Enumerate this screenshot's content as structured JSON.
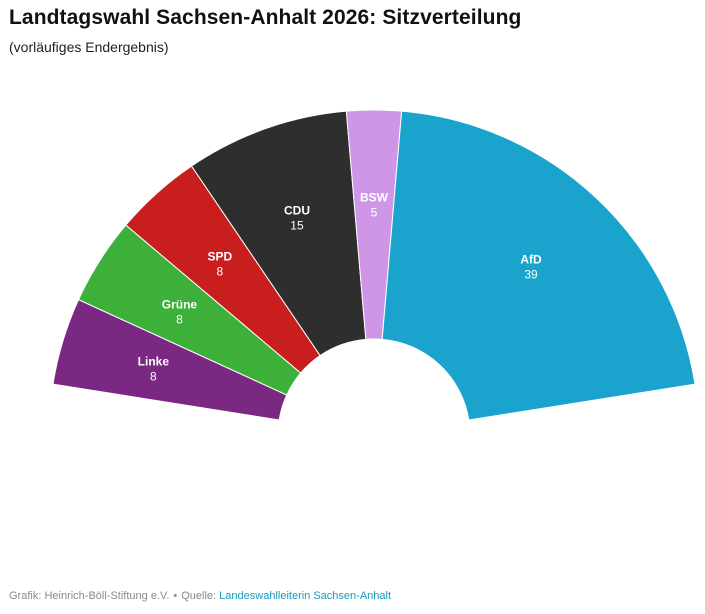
{
  "title": "Landtagswahl Sachsen-Anhalt 2026: Sitzverteilung",
  "subtitle": "(vorläufiges Endergebnis)",
  "footer": {
    "prefix": "Grafik: Heinrich-Böll-Stiftung e.V.",
    "separator": "•",
    "source_label": "Quelle:",
    "source_link": "Landeswahlleiterin Sachsen-Anhalt"
  },
  "chart_data": {
    "type": "parliament-semicircle",
    "total_seats": 83,
    "series": [
      {
        "name": "Linke",
        "seats": 8,
        "color": "#7b2882"
      },
      {
        "name": "Grüne",
        "seats": 8,
        "color": "#3db03a"
      },
      {
        "name": "SPD",
        "seats": 8,
        "color": "#c81e1e"
      },
      {
        "name": "CDU",
        "seats": 15,
        "color": "#2e2e2e"
      },
      {
        "name": "BSW",
        "seats": 5,
        "color": "#cf96e8"
      },
      {
        "name": "AfD",
        "seats": 39,
        "color": "#1aa3cc"
      }
    ]
  }
}
